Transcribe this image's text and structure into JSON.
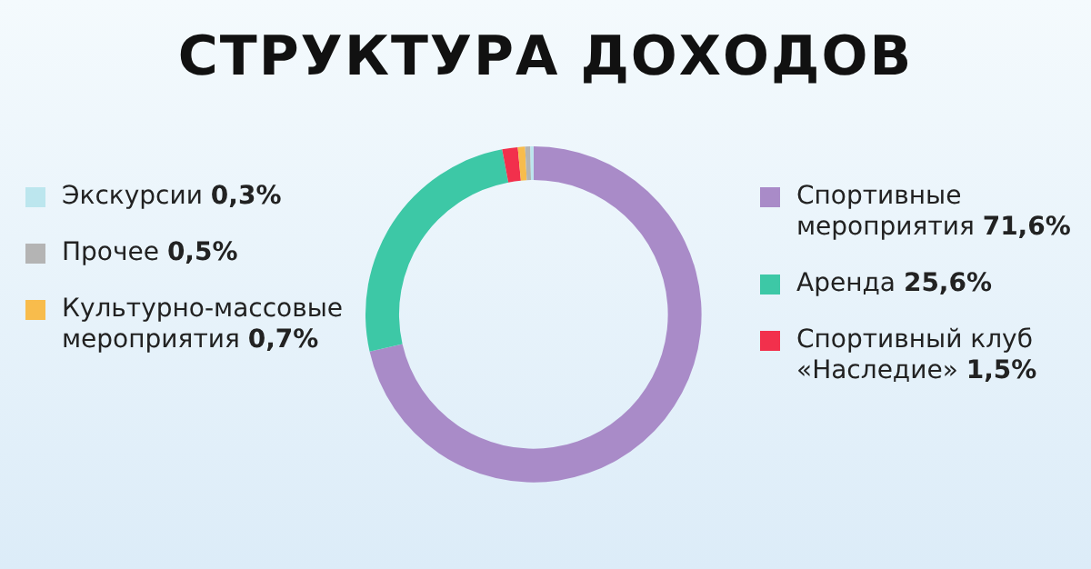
{
  "chart_data": {
    "type": "donut",
    "title": "СТРУКТУРА ДОХОДОВ",
    "categories": [
      "Спортивные мероприятия",
      "Аренда",
      "Спортивный клуб «Наследие»",
      "Культурно-массовые мероприятия",
      "Прочее",
      "Экскурсии"
    ],
    "values": [
      71.6,
      25.6,
      1.5,
      0.7,
      0.5,
      0.3
    ],
    "value_labels": [
      "71,6%",
      "25,6%",
      "1,5%",
      "0,7%",
      "0,5%",
      "0,3%"
    ],
    "colors": [
      "#a98bc8",
      "#3dc8a6",
      "#f2304c",
      "#f8bc4c",
      "#b4b4b4",
      "#bce6ee"
    ],
    "legend": "right"
  }
}
